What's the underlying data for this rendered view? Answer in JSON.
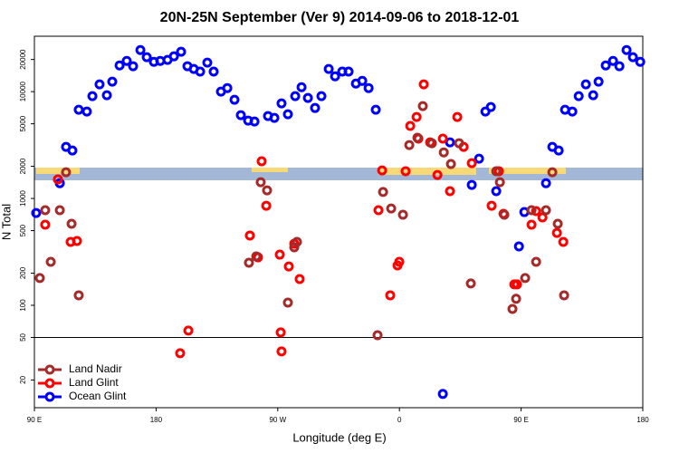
{
  "chart_data": {
    "type": "scatter",
    "title": "20N-25N September (Ver 9)   2014-09-06 to 2018-12-01",
    "x_label": "Longitude (deg E)",
    "y_label": "N Total",
    "xlim": [
      90,
      540
    ],
    "ylim": [
      11,
      33000
    ],
    "log_y": true,
    "legend": "bottom-left",
    "reference_line": 50,
    "xticks": [
      {
        "value": 90,
        "label": "90 E"
      },
      {
        "value": 180,
        "label": "180"
      },
      {
        "value": 270,
        "label": "90 W"
      },
      {
        "value": 360,
        "label": "0"
      },
      {
        "value": 450,
        "label": "90 E"
      },
      {
        "value": 540,
        "label": "180"
      }
    ],
    "yticks": [
      20,
      50,
      100,
      200,
      500,
      1000,
      2000,
      5000,
      10000,
      20000
    ],
    "series": [
      {
        "name": "Land Nadir",
        "color": "#a52a2a",
        "x": [
          94,
          98,
          102.1,
          108.8,
          113.4,
          117.5,
          122.8,
          248.7,
          254.1,
          257.4,
          262.1,
          277.5,
          282.2,
          284.2,
          343.8,
          347.9,
          353.9,
          362.6,
          367.3,
          373.3,
          377.3,
          384,
          392.8,
          398.1,
          404.1,
          412.8,
          431.6,
          434.3,
          437.6,
          443.6,
          446.3,
          453,
          457.7,
          461.1,
          468.4,
          473.1,
          477.1,
          481.8
        ],
        "values": [
          180,
          776,
          255,
          776,
          1760,
          579,
          124,
          250,
          287,
          1420,
          1190,
          106,
          349,
          392,
          52.5,
          1150,
          806,
          704,
          3160,
          3700,
          7320,
          3290,
          2700,
          2100,
          3290,
          160,
          1800,
          1420,
          704,
          92.5,
          115,
          180,
          776,
          255,
          776,
          1760,
          579,
          124
        ]
      },
      {
        "name": "Land Glint",
        "color": "#ff0000",
        "x": [
          98,
          107.4,
          116.8,
          121.5,
          197.8,
          203.9,
          249.4,
          255.4,
          258.1,
          261.5,
          271.5,
          272.2,
          272.8,
          278.2,
          282.2,
          286.2,
          344.5,
          347.2,
          353.2,
          358.6,
          359.9,
          364.6,
          368,
          372.7,
          374,
          378,
          382.7,
          388.1,
          392.1,
          397.4,
          402.8,
          407.5,
          413.5,
          428.2,
          433.6,
          437,
          445,
          447,
          457.7,
          461.1,
          465.8,
          476.5,
          481.2
        ],
        "values": [
          568,
          1510,
          392,
          400,
          35.6,
          58,
          450,
          281,
          2230,
          855,
          298,
          55.7,
          37,
          231,
          377,
          176,
          776,
          1830,
          124,
          236,
          255,
          1800,
          4770,
          5790,
          3630,
          11700,
          3350,
          1660,
          3630,
          1170,
          5790,
          3040,
          2140,
          855,
          1800,
          718,
          157,
          157,
          568,
          761,
          664,
          476,
          392
        ]
      },
      {
        "name": "Ocean Glint",
        "color": "#0000ff",
        "x": [
          91.3,
          108.8,
          113.4,
          118.1,
          122.8,
          128.8,
          132.9,
          138.2,
          143.6,
          147.6,
          153,
          158.3,
          163,
          168.4,
          173.1,
          178.4,
          183.1,
          188.5,
          193.2,
          198.5,
          203.2,
          207.9,
          212.6,
          217.9,
          222.6,
          228,
          232.7,
          238,
          242.7,
          248.1,
          252.8,
          262.8,
          267.5,
          272.8,
          277.5,
          282.9,
          287.6,
          292.3,
          297.6,
          302.3,
          307.7,
          312.4,
          317.7,
          322.4,
          327.8,
          332.5,
          337.2,
          342.5,
          392.1,
          397.4,
          413.5,
          418.9,
          423.6,
          427.6,
          431.6,
          448.4,
          452.4,
          468.4,
          473.1,
          477.8,
          482.5,
          487.9,
          492.6,
          497.9,
          503.3,
          507.3,
          512.6,
          518,
          522.7,
          528,
          532.7,
          538.1
        ],
        "values": [
          731,
          1390,
          3040,
          2810,
          6770,
          6510,
          9070,
          11700,
          9250,
          12400,
          17600,
          19400,
          17300,
          24500,
          21000,
          19000,
          19400,
          19800,
          21400,
          23600,
          17300,
          16300,
          15400,
          18700,
          15400,
          10000,
          10800,
          8390,
          6020,
          5360,
          5250,
          5910,
          5680,
          7760,
          6140,
          9070,
          11000,
          8730,
          7030,
          9070,
          16300,
          13900,
          15400,
          15400,
          11900,
          12600,
          10800,
          6770,
          14.8,
          3350,
          1340,
          2360,
          6510,
          7180,
          1170,
          356,
          746,
          1390,
          3040,
          2810,
          6770,
          6510,
          9070,
          11700,
          9250,
          12400,
          17600,
          19400,
          17300,
          24500,
          21000,
          19000
        ]
      }
    ]
  }
}
